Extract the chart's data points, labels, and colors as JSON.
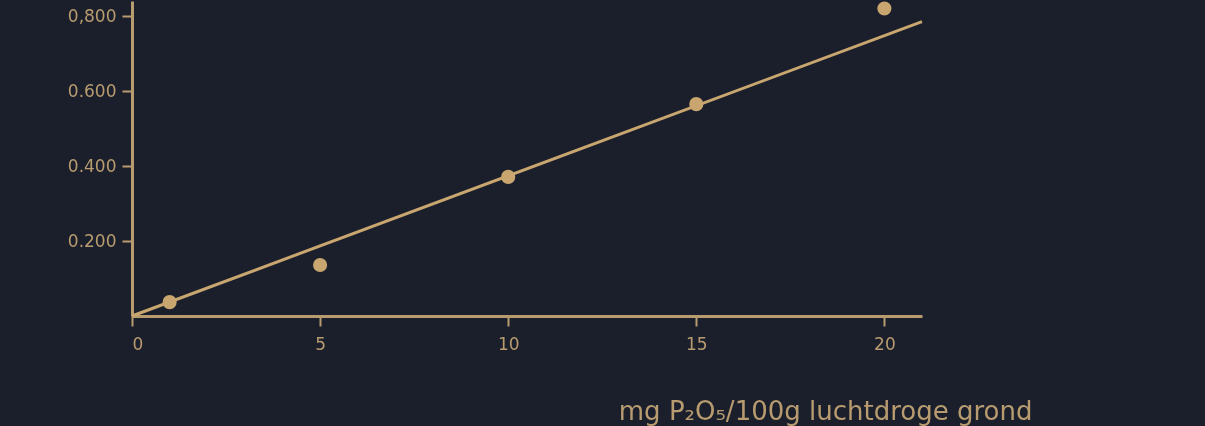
{
  "chart_data": {
    "type": "scatter",
    "xlabel": "mg P₂O₅/100g luchtdroge grond",
    "x": [
      1,
      5,
      10,
      15,
      20
    ],
    "series": [
      {
        "color": "#c9a66f",
        "marker": "circle",
        "values": [
          0.037,
          0.136,
          0.371,
          0.565,
          0.82
        ]
      },
      {
        "type": "line",
        "color": "#c9a66f",
        "marker": "none",
        "line_style": "solid",
        "x": [
          0,
          21
        ],
        "values": [
          0,
          0.785
        ]
      }
    ],
    "xlim": [
      0,
      21
    ],
    "ylim": [
      0,
      0.84
    ],
    "xticks": [
      0,
      5,
      10,
      15,
      20
    ],
    "yticks": [
      {
        "value": 0.8,
        "label": "0,800"
      },
      {
        "value": 0.6,
        "label": "0.600"
      },
      {
        "value": 0.4,
        "label": "0.400"
      },
      {
        "value": 0.2,
        "label": "0.200"
      }
    ],
    "grid": false
  }
}
